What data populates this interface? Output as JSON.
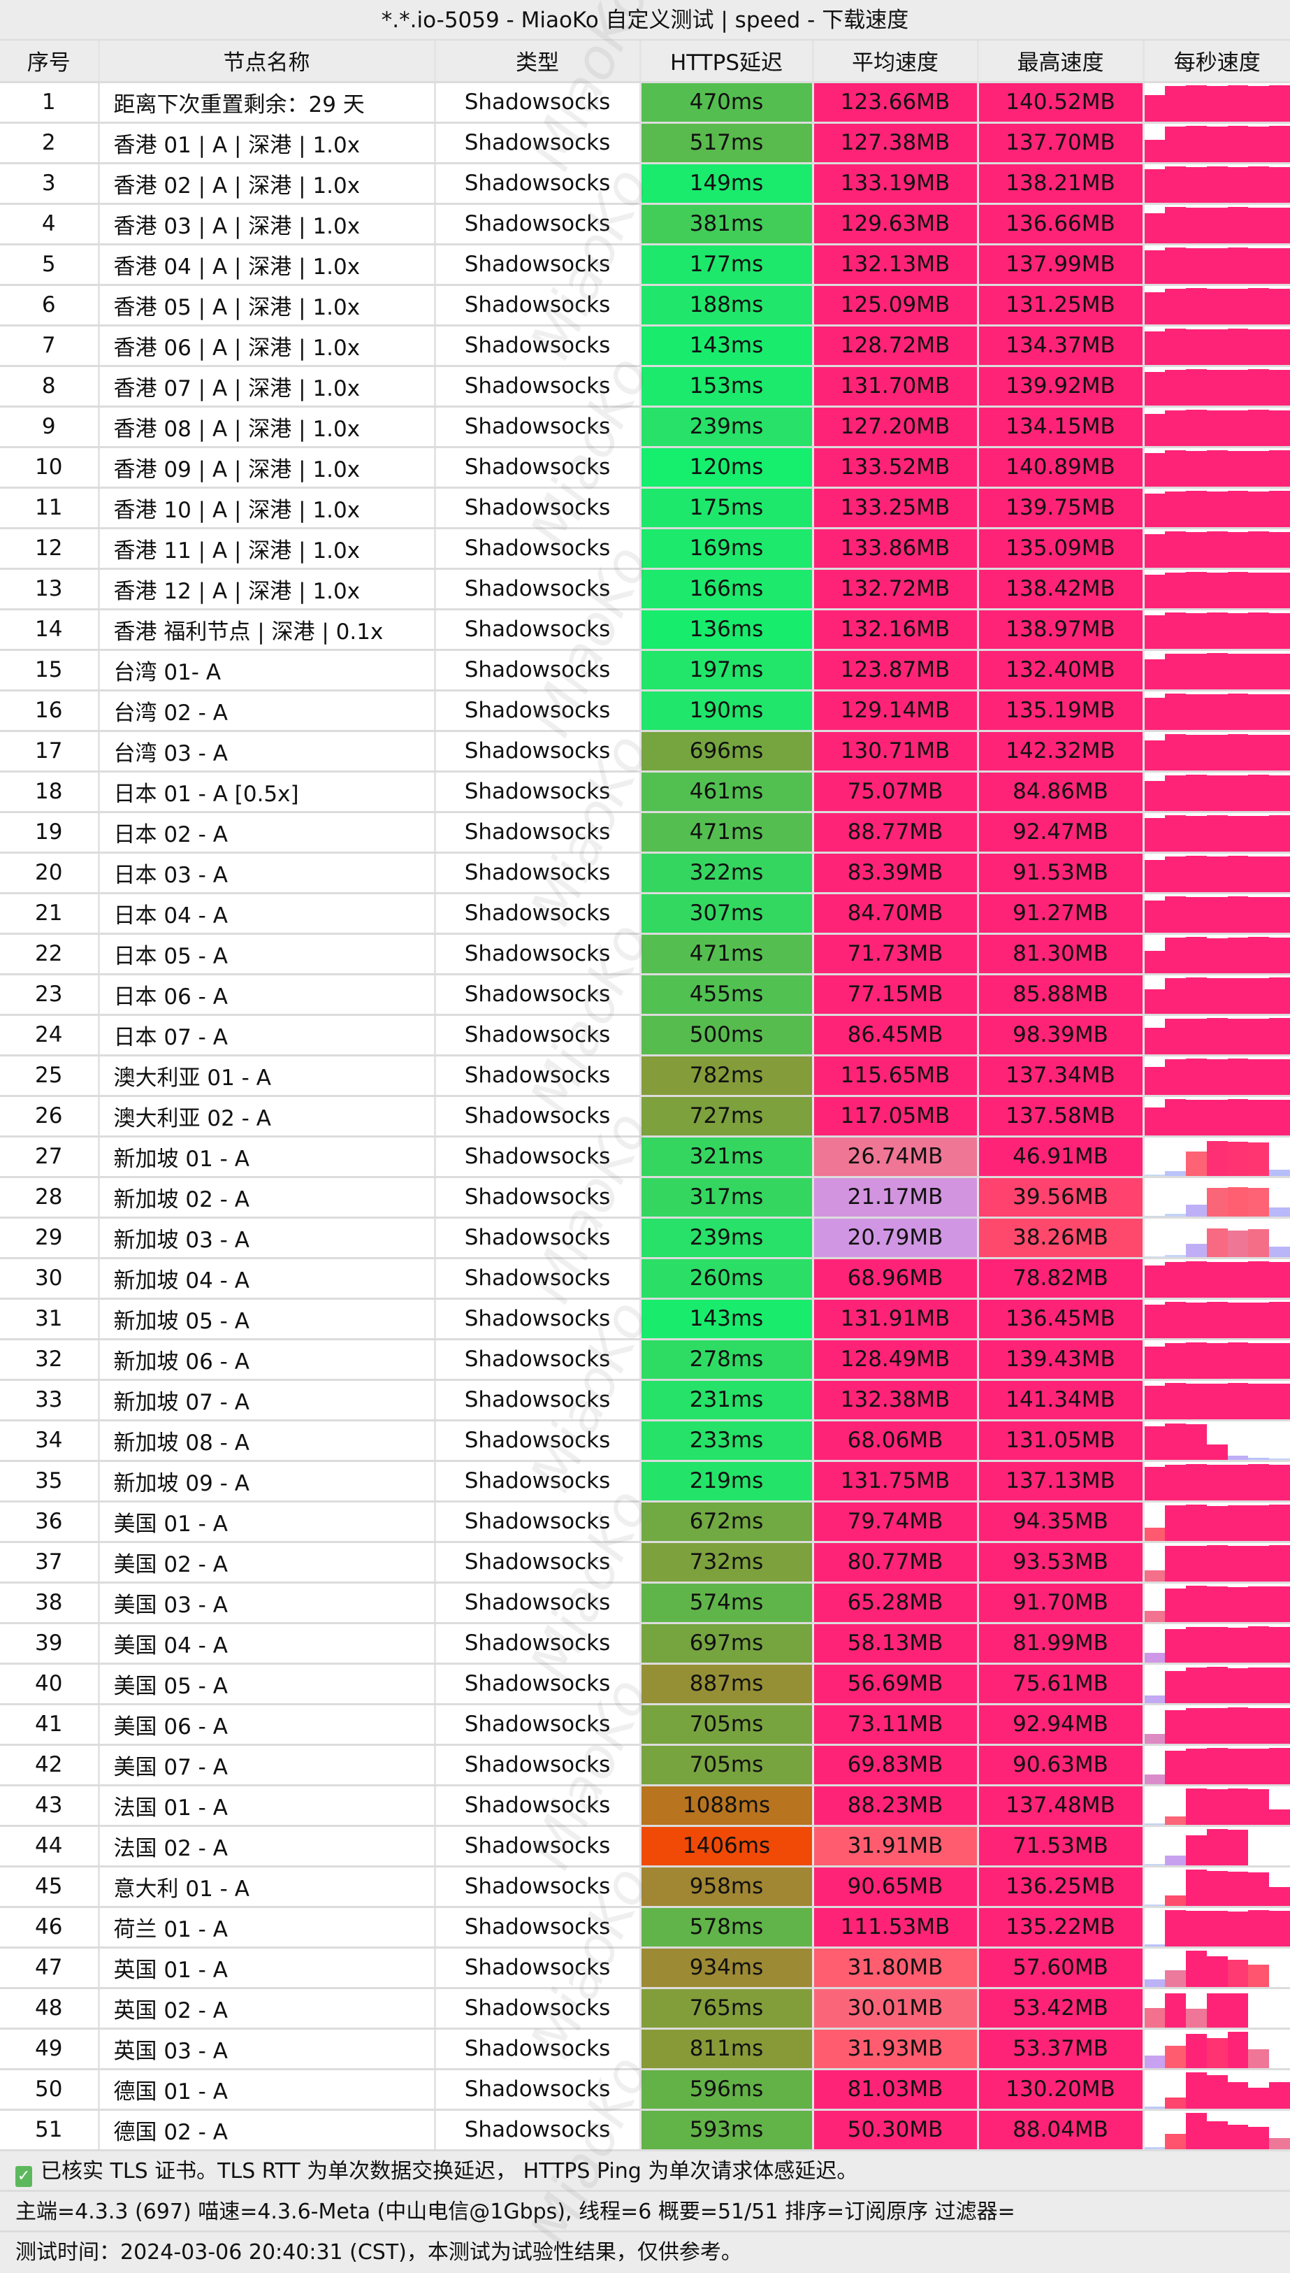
{
  "title": "*.*.io-5059 - MiaoKo 自定义测试 | speed - 下载速度",
  "watermark": "MiaoKo",
  "columns": [
    "序号",
    "节点名称",
    "类型",
    "HTTPS延迟",
    "平均速度",
    "最高速度",
    "每秒速度"
  ],
  "latency_color_stops": [
    [
      120,
      "#16ee6e"
    ],
    [
      240,
      "#27e168"
    ],
    [
      320,
      "#35d660"
    ],
    [
      470,
      "#54bf50"
    ],
    [
      600,
      "#63b248"
    ],
    [
      730,
      "#7da13d"
    ],
    [
      810,
      "#889a38"
    ],
    [
      950,
      "#a08834"
    ],
    [
      1088,
      "#b8741f"
    ],
    [
      1406,
      "#f04a06"
    ]
  ],
  "speed_color_stops": [
    [
      0,
      "#c8dcf4"
    ],
    [
      8,
      "#b6bcfc"
    ],
    [
      20,
      "#cc9aee"
    ],
    [
      26,
      "#ec7a9c"
    ],
    [
      31,
      "#ff6070"
    ],
    [
      38,
      "#ff4a6c"
    ],
    [
      46,
      "#ff2377"
    ]
  ],
  "rows": [
    {
      "n": "1",
      "name": "距离下次重置剩余：29 天",
      "type": "Shadowsocks",
      "latency": "470ms",
      "avg": "123.66MB",
      "max": "140.52MB",
      "ps": [
        0.7,
        0.95,
        0.97,
        0.95,
        0.97,
        0.95,
        0.97
      ]
    },
    {
      "n": "2",
      "name": "香港 01 | A | 深港 | 1.0x",
      "type": "Shadowsocks",
      "latency": "517ms",
      "avg": "127.38MB",
      "max": "137.70MB",
      "ps": [
        0.6,
        0.95,
        0.97,
        0.95,
        0.97,
        0.95,
        0.97
      ]
    },
    {
      "n": "3",
      "name": "香港 02 | A | 深港 | 1.0x",
      "type": "Shadowsocks",
      "latency": "149ms",
      "avg": "133.19MB",
      "max": "138.21MB",
      "ps": [
        0.9,
        0.97,
        0.96,
        0.97,
        0.95,
        0.97,
        0.96
      ]
    },
    {
      "n": "4",
      "name": "香港 03 | A | 深港 | 1.0x",
      "type": "Shadowsocks",
      "latency": "381ms",
      "avg": "129.63MB",
      "max": "136.66MB",
      "ps": [
        0.8,
        0.97,
        0.95,
        0.96,
        0.97,
        0.95,
        0.96
      ]
    },
    {
      "n": "5",
      "name": "香港 04 | A | 深港 | 1.0x",
      "type": "Shadowsocks",
      "latency": "177ms",
      "avg": "132.13MB",
      "max": "137.99MB",
      "ps": [
        0.9,
        0.97,
        0.96,
        0.95,
        0.97,
        0.96,
        0.95
      ]
    },
    {
      "n": "6",
      "name": "香港 05 | A | 深港 | 1.0x",
      "type": "Shadowsocks",
      "latency": "188ms",
      "avg": "125.09MB",
      "max": "131.25MB",
      "ps": [
        0.85,
        0.96,
        0.97,
        0.95,
        0.96,
        0.97,
        0.95
      ]
    },
    {
      "n": "7",
      "name": "香港 06 | A | 深港 | 1.0x",
      "type": "Shadowsocks",
      "latency": "143ms",
      "avg": "128.72MB",
      "max": "134.37MB",
      "ps": [
        0.9,
        0.97,
        0.95,
        0.96,
        0.97,
        0.96,
        0.95
      ]
    },
    {
      "n": "8",
      "name": "香港 07 | A | 深港 | 1.0x",
      "type": "Shadowsocks",
      "latency": "153ms",
      "avg": "131.70MB",
      "max": "139.92MB",
      "ps": [
        0.9,
        0.95,
        0.97,
        0.96,
        0.95,
        0.97,
        0.96
      ]
    },
    {
      "n": "9",
      "name": "香港 08 | A | 深港 | 1.0x",
      "type": "Shadowsocks",
      "latency": "239ms",
      "avg": "127.20MB",
      "max": "134.15MB",
      "ps": [
        0.85,
        0.96,
        0.97,
        0.95,
        0.96,
        0.97,
        0.95
      ]
    },
    {
      "n": "10",
      "name": "香港 09 | A | 深港 | 1.0x",
      "type": "Shadowsocks",
      "latency": "120ms",
      "avg": "133.52MB",
      "max": "140.89MB",
      "ps": [
        0.9,
        0.97,
        0.96,
        0.97,
        0.95,
        0.96,
        0.97
      ]
    },
    {
      "n": "11",
      "name": "香港 10 | A | 深港 | 1.0x",
      "type": "Shadowsocks",
      "latency": "175ms",
      "avg": "133.25MB",
      "max": "139.75MB",
      "ps": [
        0.9,
        0.96,
        0.97,
        0.95,
        0.97,
        0.96,
        0.97
      ]
    },
    {
      "n": "12",
      "name": "香港 11 | A | 深港 | 1.0x",
      "type": "Shadowsocks",
      "latency": "169ms",
      "avg": "133.86MB",
      "max": "135.09MB",
      "ps": [
        0.9,
        0.97,
        0.96,
        0.97,
        0.96,
        0.97,
        0.96
      ]
    },
    {
      "n": "13",
      "name": "香港 12 | A | 深港 | 1.0x",
      "type": "Shadowsocks",
      "latency": "166ms",
      "avg": "132.72MB",
      "max": "138.42MB",
      "ps": [
        0.9,
        0.96,
        0.97,
        0.95,
        0.97,
        0.96,
        0.95
      ]
    },
    {
      "n": "14",
      "name": "香港 福利节点 | 深港 | 0.1x",
      "type": "Shadowsocks",
      "latency": "136ms",
      "avg": "132.16MB",
      "max": "138.97MB",
      "ps": [
        0.9,
        0.97,
        0.95,
        0.97,
        0.96,
        0.97,
        0.96
      ]
    },
    {
      "n": "15",
      "name": "台湾 01- A",
      "type": "Shadowsocks",
      "latency": "197ms",
      "avg": "123.87MB",
      "max": "132.40MB",
      "ps": [
        0.8,
        0.96,
        0.95,
        0.97,
        0.95,
        0.96,
        0.95
      ]
    },
    {
      "n": "16",
      "name": "台湾 02 - A",
      "type": "Shadowsocks",
      "latency": "190ms",
      "avg": "129.14MB",
      "max": "135.19MB",
      "ps": [
        0.85,
        0.97,
        0.96,
        0.95,
        0.97,
        0.96,
        0.95
      ]
    },
    {
      "n": "17",
      "name": "台湾 03 - A",
      "type": "Shadowsocks",
      "latency": "696ms",
      "avg": "130.71MB",
      "max": "142.32MB",
      "ps": [
        0.8,
        0.97,
        0.95,
        0.96,
        0.97,
        0.95,
        0.96
      ]
    },
    {
      "n": "18",
      "name": "日本 01 - A [0.5x]",
      "type": "Shadowsocks",
      "latency": "461ms",
      "avg": "75.07MB",
      "max": "84.86MB",
      "ps": [
        0.8,
        0.95,
        0.97,
        0.95,
        0.96,
        0.97,
        0.95
      ]
    },
    {
      "n": "19",
      "name": "日本 02 - A",
      "type": "Shadowsocks",
      "latency": "471ms",
      "avg": "88.77MB",
      "max": "92.47MB",
      "ps": [
        0.9,
        0.97,
        0.96,
        0.97,
        0.95,
        0.96,
        0.97
      ]
    },
    {
      "n": "20",
      "name": "日本 03 - A",
      "type": "Shadowsocks",
      "latency": "322ms",
      "avg": "83.39MB",
      "max": "91.53MB",
      "ps": [
        0.85,
        0.96,
        0.97,
        0.95,
        0.97,
        0.96,
        0.95
      ]
    },
    {
      "n": "21",
      "name": "日本 04 - A",
      "type": "Shadowsocks",
      "latency": "307ms",
      "avg": "84.70MB",
      "max": "91.27MB",
      "ps": [
        0.85,
        0.97,
        0.95,
        0.96,
        0.97,
        0.95,
        0.96
      ]
    },
    {
      "n": "22",
      "name": "日本 05 - A",
      "type": "Shadowsocks",
      "latency": "471ms",
      "avg": "71.73MB",
      "max": "81.30MB",
      "ps": [
        0.6,
        0.95,
        0.97,
        0.94,
        0.96,
        0.97,
        0.95
      ]
    },
    {
      "n": "23",
      "name": "日本 06 - A",
      "type": "Shadowsocks",
      "latency": "455ms",
      "avg": "77.15MB",
      "max": "85.88MB",
      "ps": [
        0.65,
        0.96,
        0.97,
        0.95,
        0.96,
        0.95,
        0.97
      ]
    },
    {
      "n": "24",
      "name": "日本 07 - A",
      "type": "Shadowsocks",
      "latency": "500ms",
      "avg": "86.45MB",
      "max": "98.39MB",
      "ps": [
        0.7,
        0.96,
        0.95,
        0.97,
        0.96,
        0.95,
        0.97
      ]
    },
    {
      "n": "25",
      "name": "澳大利亚 01 - A",
      "type": "Shadowsocks",
      "latency": "782ms",
      "avg": "115.65MB",
      "max": "137.34MB",
      "ps": [
        0.75,
        0.96,
        0.97,
        0.95,
        0.97,
        0.96,
        0.95
      ]
    },
    {
      "n": "26",
      "name": "澳大利亚 02 - A",
      "type": "Shadowsocks",
      "latency": "727ms",
      "avg": "117.05MB",
      "max": "137.58MB",
      "ps": [
        0.75,
        0.97,
        0.95,
        0.96,
        0.97,
        0.95,
        0.96
      ]
    },
    {
      "n": "27",
      "name": "新加坡 01 - A",
      "type": "Shadowsocks",
      "latency": "321ms",
      "avg": "26.74MB",
      "max": "46.91MB",
      "ps": [
        0.02,
        0.13,
        0.65,
        0.93,
        0.91,
        0.9,
        0.16
      ]
    },
    {
      "n": "28",
      "name": "新加坡 02 - A",
      "type": "Shadowsocks",
      "latency": "317ms",
      "avg": "21.17MB",
      "max": "39.56MB",
      "ps": [
        0.01,
        0.06,
        0.31,
        0.76,
        0.79,
        0.77,
        0.24
      ]
    },
    {
      "n": "29",
      "name": "新加坡 03 - A",
      "type": "Shadowsocks",
      "latency": "239ms",
      "avg": "20.79MB",
      "max": "38.26MB",
      "ps": [
        0.01,
        0.05,
        0.34,
        0.76,
        0.7,
        0.74,
        0.27
      ]
    },
    {
      "n": "30",
      "name": "新加坡 04 - A",
      "type": "Shadowsocks",
      "latency": "260ms",
      "avg": "68.96MB",
      "max": "78.82MB",
      "ps": [
        0.85,
        0.96,
        0.97,
        0.95,
        0.96,
        0.97,
        0.95
      ]
    },
    {
      "n": "31",
      "name": "新加坡 05 - A",
      "type": "Shadowsocks",
      "latency": "143ms",
      "avg": "131.91MB",
      "max": "136.45MB",
      "ps": [
        0.9,
        0.97,
        0.96,
        0.97,
        0.95,
        0.96,
        0.97
      ]
    },
    {
      "n": "32",
      "name": "新加坡 06 - A",
      "type": "Shadowsocks",
      "latency": "278ms",
      "avg": "128.49MB",
      "max": "139.43MB",
      "ps": [
        0.85,
        0.96,
        0.97,
        0.95,
        0.97,
        0.96,
        0.95
      ]
    },
    {
      "n": "33",
      "name": "新加坡 07 - A",
      "type": "Shadowsocks",
      "latency": "231ms",
      "avg": "132.38MB",
      "max": "141.34MB",
      "ps": [
        0.9,
        0.97,
        0.95,
        0.96,
        0.97,
        0.95,
        0.96
      ]
    },
    {
      "n": "34",
      "name": "新加坡 08 - A",
      "type": "Shadowsocks",
      "latency": "233ms",
      "avg": "68.06MB",
      "max": "131.05MB",
      "ps": [
        0.9,
        0.97,
        0.96,
        0.4,
        0.1,
        0.05,
        0.02
      ]
    },
    {
      "n": "35",
      "name": "新加坡 09 - A",
      "type": "Shadowsocks",
      "latency": "219ms",
      "avg": "131.75MB",
      "max": "137.13MB",
      "ps": [
        0.9,
        0.96,
        0.97,
        0.95,
        0.96,
        0.97,
        0.95
      ]
    },
    {
      "n": "36",
      "name": "美国 01 - A",
      "type": "Shadowsocks",
      "latency": "672ms",
      "avg": "79.74MB",
      "max": "94.35MB",
      "ps": [
        0.35,
        0.95,
        0.97,
        0.94,
        0.96,
        0.95,
        0.97
      ]
    },
    {
      "n": "37",
      "name": "美国 02 - A",
      "type": "Shadowsocks",
      "latency": "732ms",
      "avg": "80.77MB",
      "max": "93.53MB",
      "ps": [
        0.3,
        0.96,
        0.95,
        0.97,
        0.95,
        0.96,
        0.97
      ]
    },
    {
      "n": "38",
      "name": "美国 03 - A",
      "type": "Shadowsocks",
      "latency": "574ms",
      "avg": "65.28MB",
      "max": "91.70MB",
      "ps": [
        0.3,
        0.9,
        0.97,
        0.95,
        0.94,
        0.96,
        0.95
      ]
    },
    {
      "n": "39",
      "name": "美国 04 - A",
      "type": "Shadowsocks",
      "latency": "697ms",
      "avg": "58.13MB",
      "max": "81.99MB",
      "ps": [
        0.25,
        0.9,
        0.95,
        0.96,
        0.94,
        0.97,
        0.95
      ]
    },
    {
      "n": "40",
      "name": "美国 05 - A",
      "type": "Shadowsocks",
      "latency": "887ms",
      "avg": "56.69MB",
      "max": "75.61MB",
      "ps": [
        0.2,
        0.85,
        0.95,
        0.97,
        0.93,
        0.96,
        0.95
      ]
    },
    {
      "n": "41",
      "name": "美国 06 - A",
      "type": "Shadowsocks",
      "latency": "705ms",
      "avg": "73.11MB",
      "max": "92.94MB",
      "ps": [
        0.25,
        0.9,
        0.96,
        0.95,
        0.97,
        0.95,
        0.96
      ]
    },
    {
      "n": "42",
      "name": "美国 07 - A",
      "type": "Shadowsocks",
      "latency": "705ms",
      "avg": "69.83MB",
      "max": "90.63MB",
      "ps": [
        0.25,
        0.9,
        0.95,
        0.97,
        0.96,
        0.95,
        0.97
      ]
    },
    {
      "n": "43",
      "name": "法国 01 - A",
      "type": "Shadowsocks",
      "latency": "1088ms",
      "avg": "88.23MB",
      "max": "137.48MB",
      "ps": [
        0.02,
        0.22,
        0.97,
        0.96,
        0.97,
        0.96,
        0.4
      ]
    },
    {
      "n": "44",
      "name": "法国 02 - A",
      "type": "Shadowsocks",
      "latency": "1406ms",
      "avg": "31.91MB",
      "max": "71.53MB",
      "ps": [
        0.02,
        0.25,
        0.8,
        0.97,
        0.96,
        0.0,
        0.0
      ]
    },
    {
      "n": "45",
      "name": "意大利 01 - A",
      "type": "Shadowsocks",
      "latency": "958ms",
      "avg": "90.65MB",
      "max": "136.25MB",
      "ps": [
        0.02,
        0.27,
        0.97,
        0.93,
        0.92,
        0.9,
        0.5
      ]
    },
    {
      "n": "46",
      "name": "荷兰 01 - A",
      "type": "Shadowsocks",
      "latency": "578ms",
      "avg": "111.53MB",
      "max": "135.22MB",
      "ps": [
        0.05,
        0.97,
        0.96,
        0.95,
        0.93,
        0.97,
        0.96
      ]
    },
    {
      "n": "47",
      "name": "英国 01 - A",
      "type": "Shadowsocks",
      "latency": "934ms",
      "avg": "31.80MB",
      "max": "57.60MB",
      "ps": [
        0.2,
        0.45,
        0.97,
        0.82,
        0.72,
        0.6,
        0.0
      ]
    },
    {
      "n": "48",
      "name": "英国 02 - A",
      "type": "Shadowsocks",
      "latency": "765ms",
      "avg": "30.01MB",
      "max": "53.42MB",
      "ps": [
        0.52,
        0.92,
        0.5,
        0.92,
        0.92,
        0.0,
        0.0
      ]
    },
    {
      "n": "49",
      "name": "英国 03 - A",
      "type": "Shadowsocks",
      "latency": "811ms",
      "avg": "31.93MB",
      "max": "53.37MB",
      "ps": [
        0.33,
        0.6,
        0.92,
        0.8,
        0.97,
        0.5,
        0.0
      ]
    },
    {
      "n": "50",
      "name": "德国 01 - A",
      "type": "Shadowsocks",
      "latency": "596ms",
      "avg": "81.03MB",
      "max": "130.20MB",
      "ps": [
        0.04,
        0.3,
        0.97,
        0.9,
        0.7,
        0.55,
        0.7
      ]
    },
    {
      "n": "51",
      "name": "德国 02 - A",
      "type": "Shadowsocks",
      "latency": "593ms",
      "avg": "50.30MB",
      "max": "88.04MB",
      "ps": [
        0.04,
        0.4,
        0.97,
        0.75,
        0.65,
        0.6,
        0.3
      ]
    }
  ],
  "footer": {
    "check_icon": "green-checkbox-icon",
    "line1": "已核实 TLS 证书。TLS RTT 为单次数据交换延迟， HTTPS Ping 为单次请求体感延迟。",
    "line2": "主端=4.3.3 (697) 喵速=4.3.6-Meta (中山电信@1Gbps), 线程=6 概要=51/51 排序=订阅原序 过滤器=",
    "line3": "测试时间：2024-03-06 20:40:31 (CST)，本测试为试验性结果，仅供参考。"
  }
}
